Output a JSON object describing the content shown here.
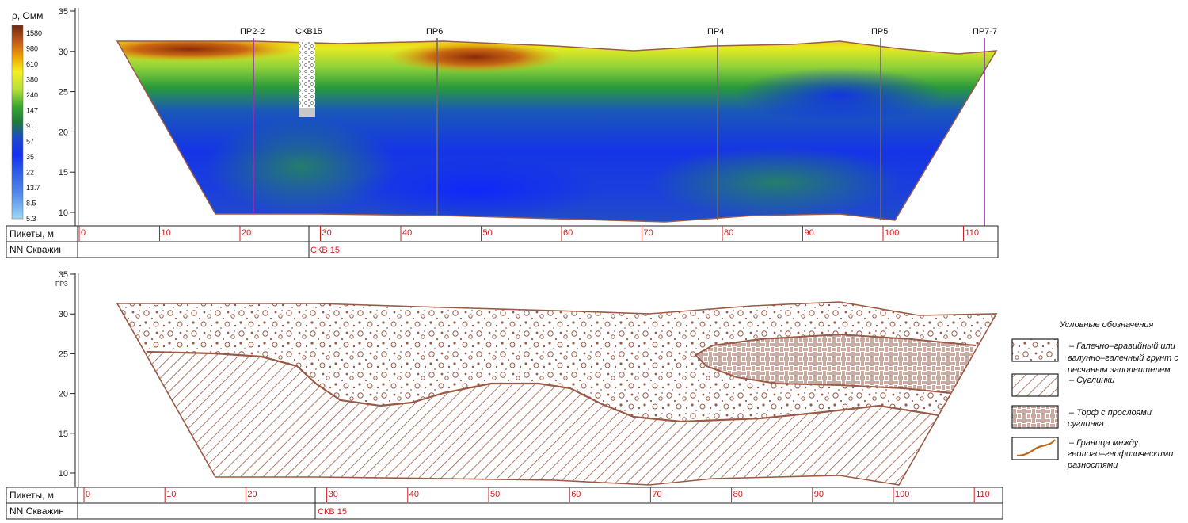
{
  "top_section": {
    "colorbar": {
      "title": "ρ, Омм",
      "labels": [
        "1580",
        "980",
        "610",
        "380",
        "240",
        "147",
        "91",
        "57",
        "35",
        "22",
        "13.7",
        "8.5",
        "5.3"
      ]
    },
    "y_ticks": [
      "35",
      "30",
      "25",
      "20",
      "15",
      "10"
    ],
    "profile_labels": [
      "ПР2-2",
      "СКВ15",
      "ПР6",
      "ПР4",
      "ПР5",
      "ПР7-7"
    ],
    "table": {
      "row1_label": "Пикеты, м",
      "row2_label": "NN Скважин",
      "pickets": [
        "0",
        "10",
        "20",
        "30",
        "40",
        "50",
        "60",
        "70",
        "80",
        "90",
        "100",
        "110"
      ],
      "well": "СКВ 15"
    }
  },
  "bottom_section": {
    "y_top_note": "ПРЗ",
    "y_ticks": [
      "35",
      "30",
      "25",
      "20",
      "15",
      "10"
    ],
    "table": {
      "row1_label": "Пикеты, м",
      "row2_label": "NN Скважин",
      "pickets": [
        "0",
        "10",
        "20",
        "30",
        "40",
        "50",
        "60",
        "70",
        "80",
        "90",
        "100",
        "110"
      ],
      "well": "СКВ 15"
    },
    "legend": {
      "title": "Условные обозначения",
      "items": [
        {
          "pattern": "gravel-icon",
          "lines": [
            "– Галечно–гравийный или",
            "валунно–галечный грунт с",
            "песчаным заполнителем"
          ]
        },
        {
          "pattern": "loam-hatch-icon",
          "lines": [
            "– Суглинки"
          ]
        },
        {
          "pattern": "peat-weave-icon",
          "lines": [
            "– Торф с прослоями",
            "суглинка"
          ]
        },
        {
          "pattern": "boundary-line-icon",
          "lines": [
            "– Граница между",
            "геолого–геофизическими",
            "разностями"
          ]
        }
      ]
    }
  },
  "colors": {
    "brown": "#9a5a46",
    "profile_purple": "#9b30b0",
    "profile_grey": "#6a6a6a",
    "picket_red": "#cc1f1f"
  }
}
